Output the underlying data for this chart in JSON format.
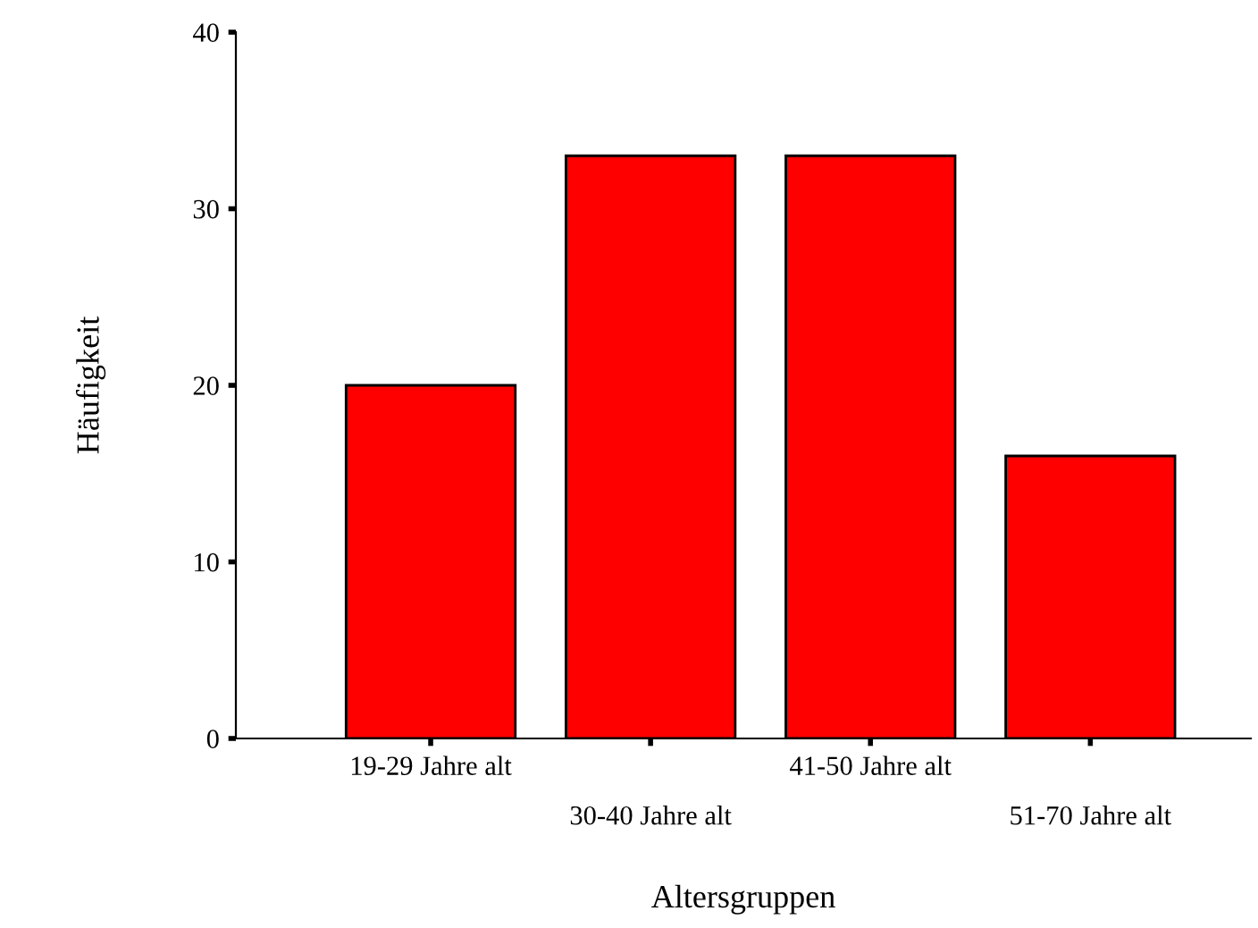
{
  "chart_data": {
    "type": "bar",
    "xlabel": "Altersgruppen",
    "ylabel": "Häufigkeit",
    "categories": [
      "19-29 Jahre alt",
      "30-40 Jahre alt",
      "41-50 Jahre alt",
      "51-70 Jahre alt"
    ],
    "values": [
      20,
      33,
      33,
      16
    ],
    "color": "#ff0000",
    "ylim": [
      0,
      40
    ],
    "yticks": [
      0,
      10,
      20,
      30,
      40
    ],
    "grid": false,
    "legend": false
  }
}
